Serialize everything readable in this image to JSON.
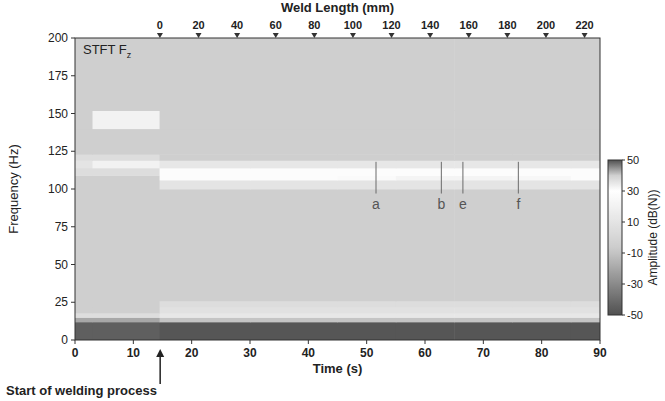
{
  "chart_data": {
    "type": "heatmap",
    "title": {
      "text": "STFT F",
      "subscript": "z"
    },
    "x_label": "Time (s)",
    "y_label": "Frequency (Hz)",
    "x2_label": "Weld Length (mm)",
    "xlim": [
      0,
      90
    ],
    "xticks": [
      0,
      10,
      20,
      30,
      40,
      50,
      60,
      70,
      80,
      90
    ],
    "ylim": [
      0,
      200
    ],
    "yticks": [
      0,
      25,
      50,
      75,
      100,
      125,
      150,
      175,
      200
    ],
    "x2lim": [
      -44,
      228
    ],
    "x2ticks": [
      0,
      20,
      40,
      60,
      80,
      100,
      120,
      140,
      160,
      180,
      200,
      220
    ],
    "x_edges": [
      0,
      3,
      14.5,
      30,
      45,
      55,
      65,
      75,
      85,
      90
    ],
    "y_edges": [
      0,
      12,
      15,
      18,
      22,
      26,
      100,
      106,
      109,
      114,
      119,
      123,
      140,
      152,
      200
    ],
    "cells": [
      [
        -45,
        -45,
        -48,
        -48,
        -48,
        -48,
        -48,
        -48,
        -48
      ],
      [
        -20,
        -20,
        -10,
        -10,
        -10,
        -10,
        -10,
        -10,
        -10
      ],
      [
        5,
        5,
        12,
        12,
        12,
        12,
        12,
        12,
        12
      ],
      [
        -5,
        -5,
        8,
        8,
        8,
        8,
        8,
        8,
        8
      ],
      [
        -5,
        -5,
        5,
        5,
        5,
        5,
        5,
        5,
        5
      ],
      [
        -5,
        -5,
        -5,
        -5,
        -5,
        -5,
        -5,
        -5,
        -5
      ],
      [
        -5,
        -5,
        10,
        10,
        10,
        10,
        10,
        10,
        10
      ],
      [
        -5,
        -5,
        28,
        28,
        26,
        22,
        22,
        24,
        28
      ],
      [
        5,
        5,
        28,
        28,
        28,
        28,
        28,
        28,
        28
      ],
      [
        10,
        20,
        12,
        12,
        12,
        12,
        12,
        12,
        12
      ],
      [
        5,
        5,
        -5,
        -5,
        -5,
        -5,
        -5,
        -5,
        -5
      ],
      [
        -5,
        -5,
        -5,
        -5,
        -5,
        -5,
        -5,
        -5,
        -5
      ],
      [
        -5,
        20,
        -5,
        -5,
        -5,
        -5,
        -5,
        -5,
        -5
      ],
      [
        -5,
        -5,
        -5,
        -5,
        -5,
        -5,
        -5,
        -5,
        -5
      ]
    ],
    "colorbar": {
      "label": "Amplitude (dB(N))",
      "range": [
        -50,
        50
      ],
      "ticks": [
        -50,
        -30,
        -10,
        10,
        30,
        50
      ]
    },
    "markers": [
      {
        "x": 51.6,
        "y": [
          97,
          118
        ],
        "label": "a"
      },
      {
        "x": 62.8,
        "y": [
          97,
          118
        ],
        "label": "b"
      },
      {
        "x": 66.5,
        "y": [
          97,
          118
        ],
        "label": "e"
      },
      {
        "x": 76,
        "y": [
          97,
          118
        ],
        "label": "f"
      }
    ],
    "annotations": [
      {
        "text": "Start of welding process",
        "x": 14.6
      }
    ]
  }
}
